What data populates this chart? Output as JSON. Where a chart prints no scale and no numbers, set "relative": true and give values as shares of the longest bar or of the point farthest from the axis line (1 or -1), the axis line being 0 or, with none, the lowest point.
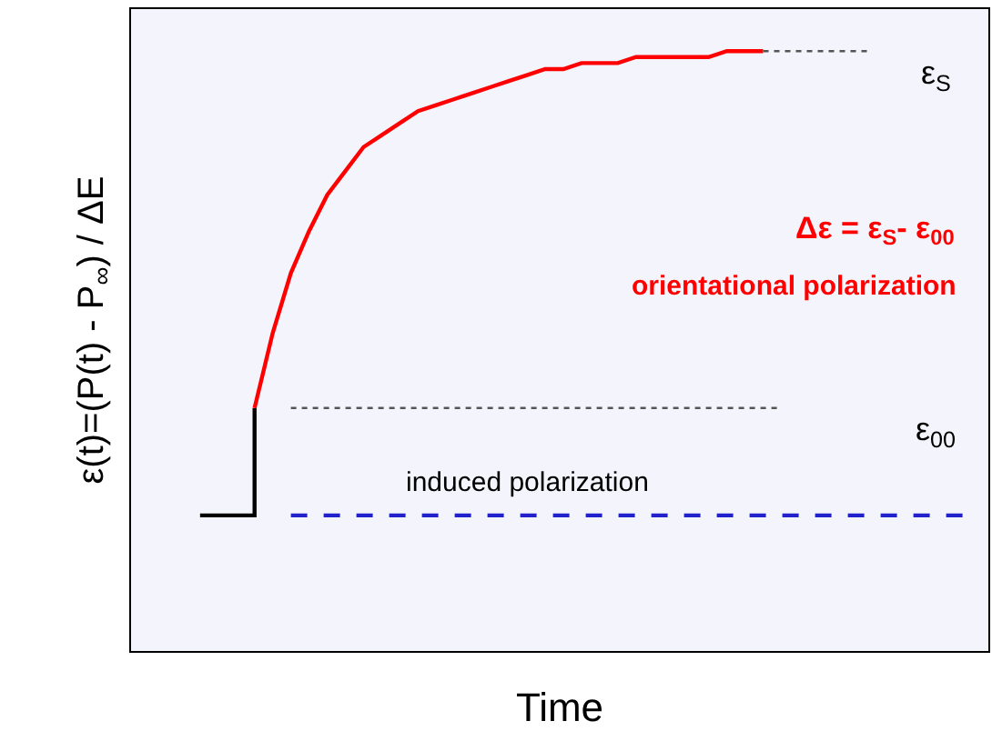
{
  "chart_data": {
    "type": "line",
    "relative": true,
    "xlabel": "Time",
    "ylabel": "ε(t)=(P(t) - P$_{∞}$) / ΔE",
    "categories": [
      null,
      null,
      null,
      null,
      null,
      null,
      null,
      null,
      null,
      null,
      null,
      null,
      null,
      null,
      null,
      null,
      null,
      null,
      null,
      null,
      null,
      null,
      null,
      null,
      null,
      null,
      null,
      null,
      null,
      null,
      null,
      null,
      null,
      null,
      null,
      null,
      null,
      null,
      null,
      null,
      null,
      null,
      null,
      null,
      null,
      null,
      null
    ],
    "series": [
      {
        "type": "step",
        "color": "#000000",
        "line_style": "solid",
        "values": [
          null,
          null,
          null,
          0.226,
          0.226,
          0.226,
          0.405,
          null,
          null,
          null,
          null,
          null,
          null,
          null,
          null,
          null,
          null,
          null,
          null,
          null,
          null,
          null,
          null,
          null,
          null,
          null,
          null,
          null,
          null,
          null,
          null,
          null,
          null,
          null,
          null,
          null,
          null,
          null,
          null,
          null,
          null,
          null,
          null,
          null,
          null,
          null,
          null
        ]
      },
      {
        "color": "#ff0000",
        "line_style": "solid",
        "values": [
          null,
          null,
          null,
          null,
          null,
          null,
          0.405,
          0.53,
          0.63,
          0.7,
          0.76,
          0.8,
          0.84,
          0.86,
          0.88,
          0.9,
          0.91,
          0.92,
          0.93,
          0.94,
          0.95,
          0.96,
          0.97,
          0.97,
          0.98,
          0.98,
          0.98,
          0.99,
          0.99,
          0.99,
          0.99,
          0.99,
          1.0,
          1.0,
          1.0,
          null,
          null,
          null,
          null,
          null,
          null,
          null,
          null,
          null,
          null,
          null,
          null
        ]
      },
      {
        "color": "#2222cc",
        "line_style": "dashed",
        "values": [
          null,
          null,
          null,
          null,
          null,
          null,
          null,
          null,
          0.226,
          0.226,
          0.226,
          0.226,
          0.226,
          0.226,
          0.226,
          0.226,
          0.226,
          0.226,
          0.226,
          0.226,
          0.226,
          0.226,
          0.226,
          0.226,
          0.226,
          0.226,
          0.226,
          0.226,
          0.226,
          0.226,
          0.226,
          0.226,
          0.226,
          0.226,
          0.226,
          0.226,
          0.226,
          0.226,
          0.226,
          0.226,
          0.226,
          0.226,
          0.226,
          0.226,
          0.226,
          0.226,
          null
        ]
      },
      {
        "type": "line",
        "color": "#555555",
        "line_style": "dotted",
        "values": [
          null,
          null,
          null,
          null,
          null,
          null,
          null,
          null,
          0.405,
          0.405,
          0.405,
          0.405,
          0.405,
          0.405,
          0.405,
          0.405,
          0.405,
          0.405,
          0.405,
          0.405,
          0.405,
          0.405,
          0.405,
          0.405,
          0.405,
          0.405,
          0.405,
          0.405,
          0.405,
          0.405,
          0.405,
          0.405,
          0.405,
          0.405,
          0.405,
          0.405,
          null,
          null,
          null,
          null,
          null,
          null,
          null,
          null,
          null,
          null,
          null
        ]
      },
      {
        "type": "line",
        "color": "#555555",
        "line_style": "dotted",
        "values": [
          null,
          null,
          null,
          null,
          null,
          null,
          null,
          null,
          null,
          null,
          null,
          null,
          null,
          null,
          null,
          null,
          null,
          null,
          null,
          null,
          null,
          null,
          null,
          null,
          null,
          null,
          null,
          null,
          null,
          null,
          null,
          null,
          null,
          null,
          1.0,
          1.0,
          1.0,
          1.0,
          1.0,
          1.0,
          1.0,
          null,
          null,
          null,
          null,
          null,
          null
        ]
      }
    ],
    "annotations": [
      "ε$_{S}$",
      "Δε = ε$_{S}$- ε$_{00}$",
      "orientational polarization",
      "ε$_{00}$",
      "induced polarization"
    ],
    "legend": false,
    "grid": false
  }
}
